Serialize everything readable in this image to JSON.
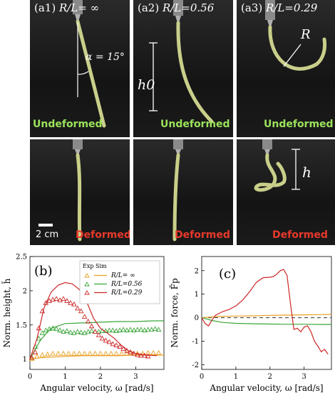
{
  "photos": {
    "a1": {
      "label": "(a1)",
      "ratio": "R/L= ∞"
    },
    "a2": {
      "label": "(a2)",
      "ratio": "R/L=0.56"
    },
    "a3": {
      "label": "(a3)",
      "ratio": "R/L=0.29"
    },
    "undeformed": "Undeformed",
    "deformed": "Deformed",
    "alpha": "α = 15°",
    "h0": "h0",
    "R": "R",
    "h": "h",
    "scale": "2 cm"
  },
  "colors": {
    "orange": "#e8a020",
    "green": "#3aa63a",
    "red": "#cc2828",
    "undeformed_text": "#9be35b",
    "deformed_text": "#e8392c"
  },
  "chart_data": [
    {
      "type": "scatter",
      "panel_label": "(b)",
      "xlabel": "Angular velocity, ω [rad/s]",
      "ylabel": "Norm. height, h̄",
      "xlim": [
        0,
        3.8
      ],
      "ylim": [
        0.85,
        2.5
      ],
      "xticks": [
        0,
        1,
        2,
        3
      ],
      "yticks": [
        1,
        1.5,
        2,
        2.5
      ],
      "legend": {
        "header_exp": "Exp",
        "header_sim": "Sim",
        "entries": [
          "R/L= ∞",
          "R/L=0.56",
          "R/L=0.29"
        ]
      },
      "series": [
        {
          "name": "R/L= ∞",
          "color": "#e8a020",
          "exp_x": [
            0.05,
            0.2,
            0.35,
            0.5,
            0.65,
            0.8,
            0.95,
            1.1,
            1.25,
            1.4,
            1.55,
            1.7,
            1.85,
            2.0,
            2.15,
            2.3,
            2.45,
            2.6,
            2.75,
            2.9,
            3.05,
            3.2,
            3.35,
            3.5,
            3.65
          ],
          "exp_y": [
            1.0,
            1.04,
            1.06,
            1.07,
            1.08,
            1.08,
            1.08,
            1.08,
            1.08,
            1.08,
            1.08,
            1.08,
            1.08,
            1.08,
            1.08,
            1.08,
            1.08,
            1.08,
            1.08,
            1.08,
            1.08,
            1.08,
            1.09,
            1.09,
            1.09
          ],
          "sim_x": [
            0,
            0.3,
            0.6,
            1.0,
            1.5,
            2.0,
            2.5,
            3.0,
            3.5,
            3.8
          ],
          "sim_y": [
            1.0,
            1.02,
            1.03,
            1.04,
            1.05,
            1.05,
            1.05,
            1.06,
            1.06,
            1.06
          ]
        },
        {
          "name": "R/L=0.56",
          "color": "#3aa63a",
          "exp_x": [
            0.05,
            0.15,
            0.25,
            0.35,
            0.45,
            0.55,
            0.65,
            0.75,
            0.85,
            0.95,
            1.05,
            1.15,
            1.25,
            1.35,
            1.45,
            1.55,
            1.65,
            1.75,
            1.85,
            1.95,
            2.05,
            2.15,
            2.25,
            2.35,
            2.45,
            2.55,
            2.65,
            2.75,
            2.85,
            2.95,
            3.05,
            3.15,
            3.25,
            3.35,
            3.45,
            3.55,
            3.65
          ],
          "exp_y": [
            1.02,
            1.18,
            1.3,
            1.38,
            1.42,
            1.44,
            1.45,
            1.44,
            1.42,
            1.4,
            1.41,
            1.39,
            1.38,
            1.4,
            1.39,
            1.38,
            1.4,
            1.41,
            1.4,
            1.4,
            1.41,
            1.41,
            1.42,
            1.42,
            1.41,
            1.42,
            1.43,
            1.42,
            1.43,
            1.42,
            1.43,
            1.43,
            1.42,
            1.43,
            1.43,
            1.44,
            1.43
          ],
          "sim_x": [
            0,
            0.3,
            0.6,
            1.0,
            1.5,
            2.0,
            2.5,
            3.0,
            3.5,
            3.8
          ],
          "sim_y": [
            1.0,
            1.28,
            1.45,
            1.52,
            1.53,
            1.54,
            1.55,
            1.55,
            1.56,
            1.56
          ]
        },
        {
          "name": "R/L=0.29",
          "color": "#cc2828",
          "exp_x": [
            0.05,
            0.15,
            0.25,
            0.35,
            0.45,
            0.55,
            0.65,
            0.75,
            0.85,
            0.95,
            1.05,
            1.15,
            1.25,
            1.35,
            1.45,
            1.55,
            1.65,
            1.75,
            1.85,
            1.95,
            2.05,
            2.15,
            2.25,
            2.35,
            2.45,
            2.55,
            2.65,
            2.75,
            2.85,
            2.95,
            3.05,
            3.15,
            3.25,
            3.35
          ],
          "exp_y": [
            1.02,
            1.1,
            1.45,
            1.7,
            1.82,
            1.85,
            1.87,
            1.88,
            1.86,
            1.88,
            1.85,
            1.82,
            1.8,
            1.74,
            1.7,
            1.62,
            1.55,
            1.48,
            1.4,
            1.35,
            1.3,
            1.27,
            1.25,
            1.22,
            1.2,
            1.18,
            1.15,
            1.12,
            1.1,
            1.08,
            1.06,
            1.05,
            1.05,
            1.04
          ],
          "sim_x": [
            0,
            0.2,
            0.4,
            0.6,
            0.8,
            1.0,
            1.2,
            1.4,
            1.6,
            1.8,
            2.0,
            2.2,
            2.4,
            2.6,
            2.8,
            3.0,
            3.3,
            3.6
          ],
          "sim_y": [
            1.0,
            1.3,
            1.75,
            1.98,
            2.08,
            2.12,
            2.1,
            2.02,
            1.85,
            1.6,
            1.45,
            1.38,
            1.3,
            1.2,
            1.12,
            1.08,
            1.06,
            1.05
          ]
        }
      ]
    },
    {
      "type": "line",
      "panel_label": "(c)",
      "xlabel": "Angular velocity, ω [rad/s]",
      "ylabel": "Norm. force, F̄p",
      "xlim": [
        0,
        3.8
      ],
      "ylim": [
        -2.2,
        2.6
      ],
      "xticks": [
        0,
        1,
        2,
        3
      ],
      "yticks": [
        -2,
        -1,
        0,
        1,
        2
      ],
      "reference_line_y": 0,
      "series": [
        {
          "name": "R/L= ∞",
          "color": "#e8a020",
          "x": [
            0,
            0.5,
            1.0,
            1.5,
            2.0,
            2.5,
            3.0,
            3.5,
            3.8
          ],
          "y": [
            0,
            0.05,
            0.07,
            0.08,
            0.1,
            0.11,
            0.12,
            0.13,
            0.14
          ]
        },
        {
          "name": "R/L=0.56",
          "color": "#3aa63a",
          "x": [
            0,
            0.3,
            0.6,
            1.0,
            1.5,
            2.0,
            2.5,
            3.0,
            3.5,
            3.8
          ],
          "y": [
            0,
            -0.12,
            -0.2,
            -0.24,
            -0.26,
            -0.27,
            -0.28,
            -0.28,
            -0.29,
            -0.29
          ]
        },
        {
          "name": "R/L=0.29",
          "color": "#cc2828",
          "x": [
            0,
            0.1,
            0.2,
            0.3,
            0.4,
            0.6,
            0.8,
            1.0,
            1.2,
            1.4,
            1.6,
            1.8,
            2.0,
            2.1,
            2.2,
            2.3,
            2.4,
            2.5,
            2.6,
            2.7,
            2.8,
            2.9,
            3.0,
            3.1,
            3.2,
            3.3,
            3.4,
            3.5,
            3.6,
            3.7
          ],
          "y": [
            0,
            -0.25,
            -0.35,
            -0.1,
            0.1,
            0.25,
            0.35,
            0.5,
            0.75,
            1.1,
            1.5,
            1.7,
            1.72,
            1.75,
            1.85,
            2.0,
            2.05,
            1.8,
            0.6,
            -0.5,
            -0.45,
            -0.6,
            -0.4,
            -0.35,
            -0.6,
            -1.0,
            -1.2,
            -1.45,
            -1.35,
            -1.55
          ]
        }
      ]
    }
  ]
}
